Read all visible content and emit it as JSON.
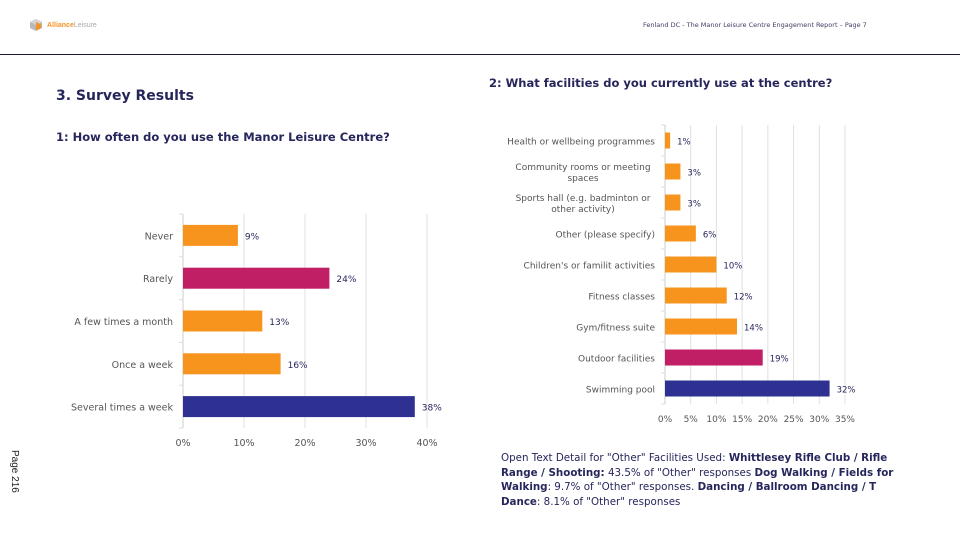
{
  "header": {
    "logo_text_bold": "Alliance",
    "logo_text_light": "Leisure",
    "report_title": "Fenland DC - The Manor Leisure Centre Engagement Report – Page 7"
  },
  "section_title": "3. Survey Results",
  "page_side_label": "Page 216",
  "colors": {
    "orange": "#f7941d",
    "magenta": "#c01f66",
    "navy": "#2e3192",
    "text": "#26265c",
    "grid": "#e0e0e0"
  },
  "chart_data": [
    {
      "type": "bar",
      "orientation": "horizontal",
      "title": "1: How often do you use the Manor Leisure Centre?",
      "categories": [
        "Never",
        "Rarely",
        "A few times a month",
        "Once a week",
        "Several times a week"
      ],
      "values": [
        9,
        24,
        13,
        16,
        38
      ],
      "value_labels": [
        "9%",
        "24%",
        "13%",
        "16%",
        "38%"
      ],
      "bar_colors": [
        "orange",
        "magenta",
        "orange",
        "orange",
        "navy"
      ],
      "xlim": [
        0,
        40
      ],
      "xticks": [
        0,
        10,
        20,
        30,
        40
      ],
      "xtick_labels": [
        "0%",
        "10%",
        "20%",
        "30%",
        "40%"
      ],
      "xlabel": "",
      "ylabel": "",
      "grid": "vertical",
      "legend": "none"
    },
    {
      "type": "bar",
      "orientation": "horizontal",
      "title": "2: What facilities do you currently use at the centre?",
      "categories": [
        [
          "Health or wellbeing programmes"
        ],
        [
          "Community rooms or meeting",
          "spaces"
        ],
        [
          "Sports hall (e.g. badminton or",
          "other activity)"
        ],
        [
          "Other (please specify)"
        ],
        [
          "Children's or familit activities"
        ],
        [
          "Fitness classes"
        ],
        [
          "Gym/fitness suite"
        ],
        [
          "Outdoor facilities"
        ],
        [
          "Swimming pool"
        ]
      ],
      "values": [
        1,
        3,
        3,
        6,
        10,
        12,
        14,
        19,
        32
      ],
      "value_labels": [
        "1%",
        "3%",
        "3%",
        "6%",
        "10%",
        "12%",
        "14%",
        "19%",
        "32%"
      ],
      "bar_colors": [
        "orange",
        "orange",
        "orange",
        "orange",
        "orange",
        "orange",
        "orange",
        "magenta",
        "navy"
      ],
      "xlim": [
        0,
        35
      ],
      "xticks": [
        0,
        5,
        10,
        15,
        20,
        25,
        30,
        35
      ],
      "xtick_labels": [
        "0%",
        "5%",
        "10%",
        "15%",
        "20%",
        "25%",
        "30%",
        "35%"
      ],
      "xlabel": "",
      "ylabel": "",
      "grid": "vertical",
      "legend": "none"
    }
  ],
  "open_text": {
    "intro": "Open Text Detail for \"Other\" Facilities Used: ",
    "items": [
      {
        "label": "Whittlesey Rifle Club / Rifle Range / Shooting:",
        "detail": " 43.5% of \"Other\" responses "
      },
      {
        "label": "Dog Walking / Fields for Walking",
        "detail": ": 9.7% of \"Other\" responses. "
      },
      {
        "label": "Dancing / Ballroom Dancing / T Dance",
        "detail": ": 8.1% of \"Other\" responses"
      }
    ]
  }
}
